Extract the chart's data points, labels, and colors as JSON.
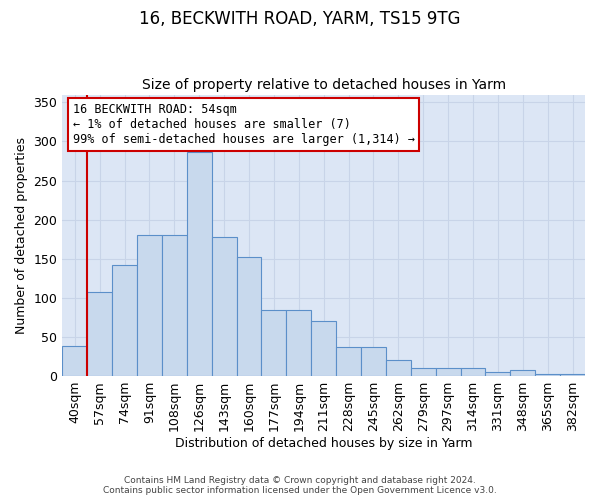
{
  "title": "16, BECKWITH ROAD, YARM, TS15 9TG",
  "subtitle": "Size of property relative to detached houses in Yarm",
  "xlabel": "Distribution of detached houses by size in Yarm",
  "ylabel": "Number of detached properties",
  "categories": [
    "40sqm",
    "57sqm",
    "74sqm",
    "91sqm",
    "108sqm",
    "126sqm",
    "143sqm",
    "160sqm",
    "177sqm",
    "194sqm",
    "211sqm",
    "228sqm",
    "245sqm",
    "262sqm",
    "279sqm",
    "297sqm",
    "314sqm",
    "331sqm",
    "348sqm",
    "365sqm",
    "382sqm"
  ],
  "values": [
    38,
    108,
    142,
    180,
    180,
    287,
    178,
    152,
    85,
    85,
    70,
    37,
    37,
    20,
    10,
    10,
    10,
    5,
    8,
    3,
    3
  ],
  "bar_color": "#c8d9ed",
  "bar_edge_color": "#5b8fc9",
  "annotation_text": "16 BECKWITH ROAD: 54sqm\n← 1% of detached houses are smaller (7)\n99% of semi-detached houses are larger (1,314) →",
  "annotation_box_color": "#ffffff",
  "annotation_box_edge": "#cc0000",
  "vline_color": "#cc0000",
  "ylim": [
    0,
    360
  ],
  "yticks": [
    0,
    50,
    100,
    150,
    200,
    250,
    300,
    350
  ],
  "grid_color": "#c8d4e8",
  "background_color": "#dce6f5",
  "footer_text": "Contains HM Land Registry data © Crown copyright and database right 2024.\nContains public sector information licensed under the Open Government Licence v3.0.",
  "title_fontsize": 12,
  "subtitle_fontsize": 10,
  "ylabel_text": "Number of detached properties"
}
